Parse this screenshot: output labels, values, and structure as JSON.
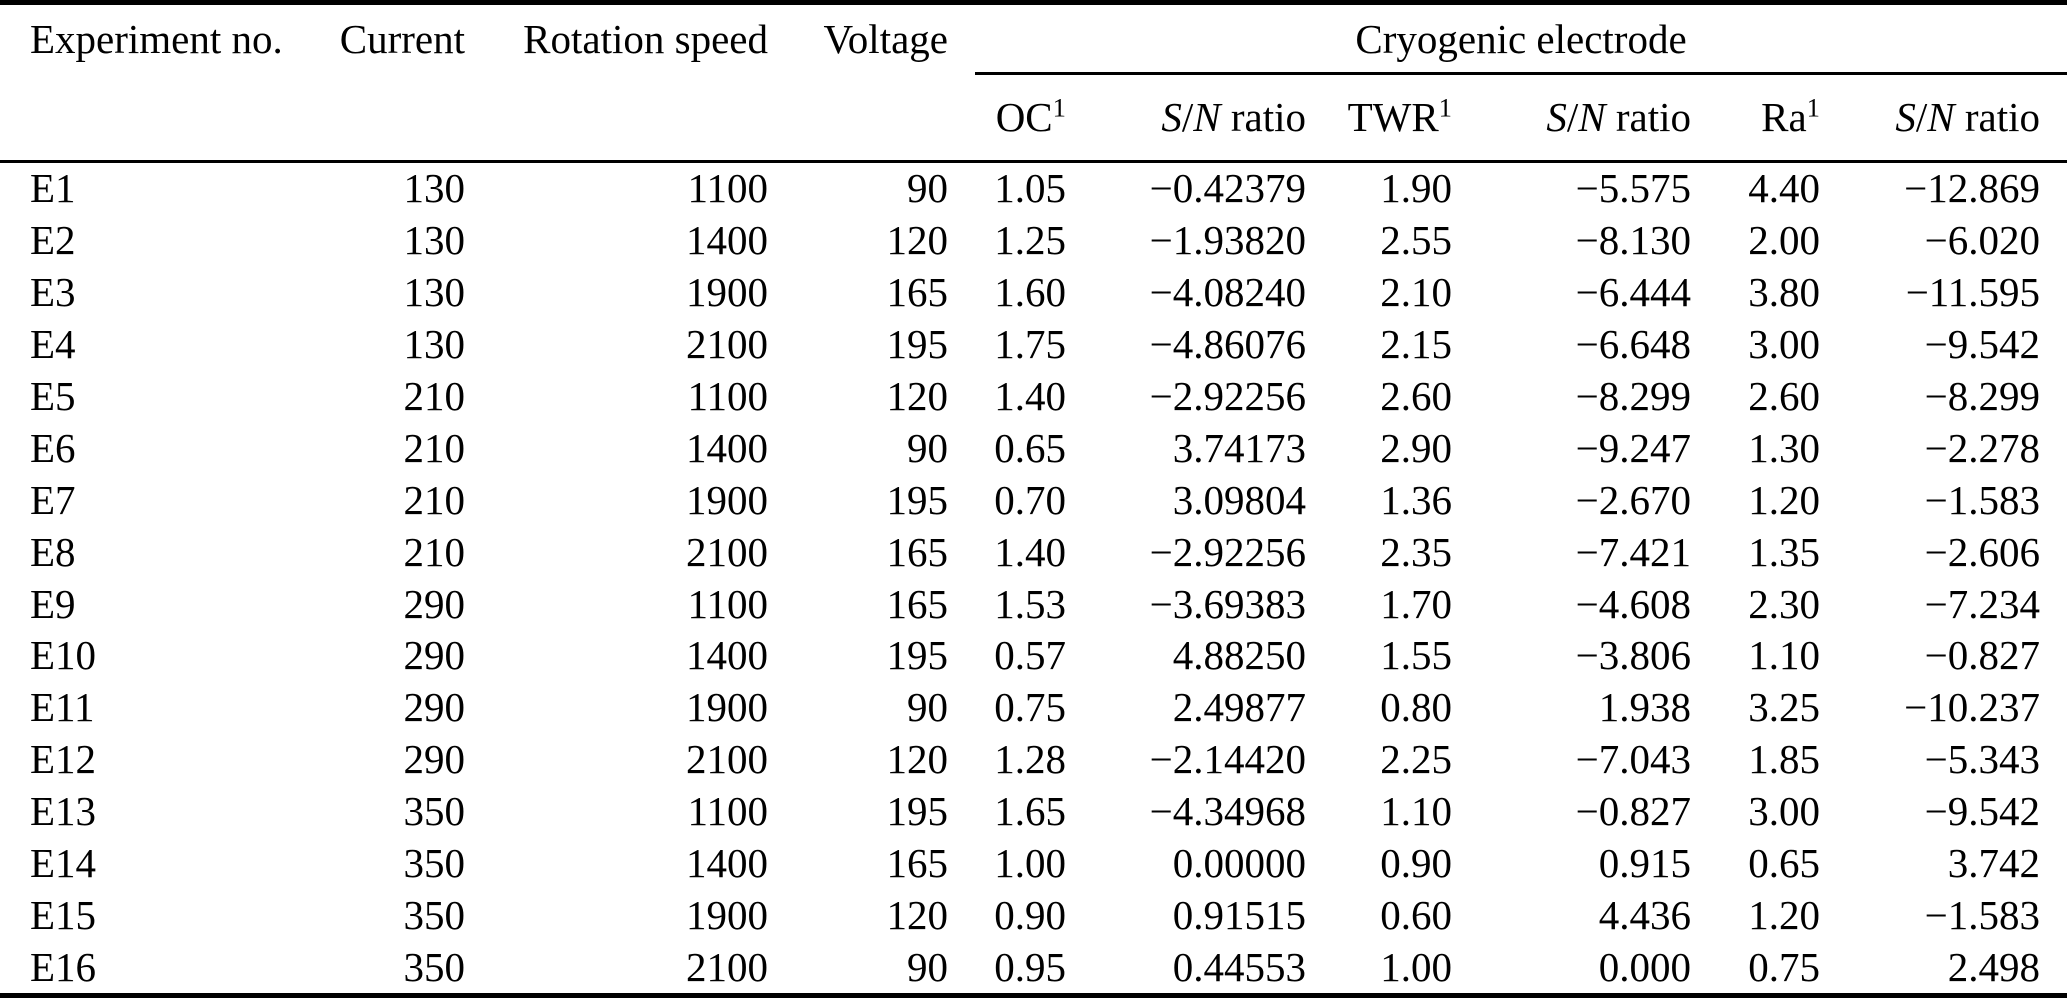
{
  "colors": {
    "background": "#ffffff",
    "text": "#000000",
    "rule": "#000000"
  },
  "table": {
    "group_header": "Cryogenic electrode",
    "columns": [
      "Experiment no.",
      "Current",
      "Rotation speed",
      "Voltage"
    ],
    "sub_columns": [
      [
        {
          "text": "OC"
        },
        {
          "text": "1",
          "sup": true
        }
      ],
      [
        {
          "text": "S",
          "italic": true
        },
        {
          "text": "/"
        },
        {
          "text": "N",
          "italic": true
        },
        {
          "text": " ratio"
        }
      ],
      [
        {
          "text": "TWR"
        },
        {
          "text": "1",
          "sup": true
        }
      ],
      [
        {
          "text": "S",
          "italic": true
        },
        {
          "text": "/"
        },
        {
          "text": "N",
          "italic": true
        },
        {
          "text": " ratio"
        }
      ],
      [
        {
          "text": "Ra"
        },
        {
          "text": "1",
          "sup": true
        }
      ],
      [
        {
          "text": "S",
          "italic": true
        },
        {
          "text": "/"
        },
        {
          "text": "N",
          "italic": true
        },
        {
          "text": " ratio"
        }
      ]
    ],
    "rows": [
      [
        "E1",
        "130",
        "1100",
        "90",
        "1.05",
        "−0.42379",
        "1.90",
        "−5.575",
        "4.40",
        "−12.869"
      ],
      [
        "E2",
        "130",
        "1400",
        "120",
        "1.25",
        "−1.93820",
        "2.55",
        "−8.130",
        "2.00",
        "−6.020"
      ],
      [
        "E3",
        "130",
        "1900",
        "165",
        "1.60",
        "−4.08240",
        "2.10",
        "−6.444",
        "3.80",
        "−11.595"
      ],
      [
        "E4",
        "130",
        "2100",
        "195",
        "1.75",
        "−4.86076",
        "2.15",
        "−6.648",
        "3.00",
        "−9.542"
      ],
      [
        "E5",
        "210",
        "1100",
        "120",
        "1.40",
        "−2.92256",
        "2.60",
        "−8.299",
        "2.60",
        "−8.299"
      ],
      [
        "E6",
        "210",
        "1400",
        "90",
        "0.65",
        "3.74173",
        "2.90",
        "−9.247",
        "1.30",
        "−2.278"
      ],
      [
        "E7",
        "210",
        "1900",
        "195",
        "0.70",
        "3.09804",
        "1.36",
        "−2.670",
        "1.20",
        "−1.583"
      ],
      [
        "E8",
        "210",
        "2100",
        "165",
        "1.40",
        "−2.92256",
        "2.35",
        "−7.421",
        "1.35",
        "−2.606"
      ],
      [
        "E9",
        "290",
        "1100",
        "165",
        "1.53",
        "−3.69383",
        "1.70",
        "−4.608",
        "2.30",
        "−7.234"
      ],
      [
        "E10",
        "290",
        "1400",
        "195",
        "0.57",
        "4.88250",
        "1.55",
        "−3.806",
        "1.10",
        "−0.827"
      ],
      [
        "E11",
        "290",
        "1900",
        "90",
        "0.75",
        "2.49877",
        "0.80",
        "1.938",
        "3.25",
        "−10.237"
      ],
      [
        "E12",
        "290",
        "2100",
        "120",
        "1.28",
        "−2.14420",
        "2.25",
        "−7.043",
        "1.85",
        "−5.343"
      ],
      [
        "E13",
        "350",
        "1100",
        "195",
        "1.65",
        "−4.34968",
        "1.10",
        "−0.827",
        "3.00",
        "−9.542"
      ],
      [
        "E14",
        "350",
        "1400",
        "165",
        "1.00",
        "0.00000",
        "0.90",
        "0.915",
        "0.65",
        "3.742"
      ],
      [
        "E15",
        "350",
        "1900",
        "120",
        "0.90",
        "0.91515",
        "0.60",
        "4.436",
        "1.20",
        "−1.583"
      ],
      [
        "E16",
        "350",
        "2100",
        "90",
        "0.95",
        "0.44553",
        "1.00",
        "0.000",
        "0.75",
        "2.498"
      ]
    ]
  }
}
